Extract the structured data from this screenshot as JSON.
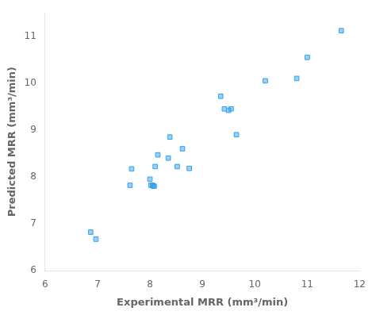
{
  "chart_data": {
    "type": "scatter",
    "x": [
      6.87,
      6.97,
      7.62,
      7.65,
      8.0,
      8.02,
      8.05,
      8.07,
      8.08,
      8.1,
      8.15,
      8.35,
      8.38,
      8.52,
      8.62,
      8.75,
      9.35,
      9.42,
      9.5,
      9.55,
      9.65,
      10.2,
      10.8,
      11.0,
      11.65
    ],
    "values": [
      6.82,
      6.67,
      7.82,
      8.17,
      7.95,
      7.82,
      7.82,
      7.8,
      7.8,
      8.22,
      8.47,
      8.4,
      8.85,
      8.22,
      8.6,
      8.18,
      9.72,
      9.45,
      9.42,
      9.45,
      8.9,
      10.05,
      10.1,
      10.55,
      11.12
    ],
    "marker": "square",
    "xlabel": "Experimental MRR (mm³/min)",
    "ylabel": "Predicted MRR (mm³/min)",
    "xlim": [
      6,
      12
    ],
    "ylim": [
      6,
      11.5
    ],
    "xticks": [
      6,
      7,
      8,
      9,
      10,
      11,
      12
    ],
    "yticks": [
      6,
      7,
      8,
      9,
      10,
      11
    ],
    "grid": false
  }
}
